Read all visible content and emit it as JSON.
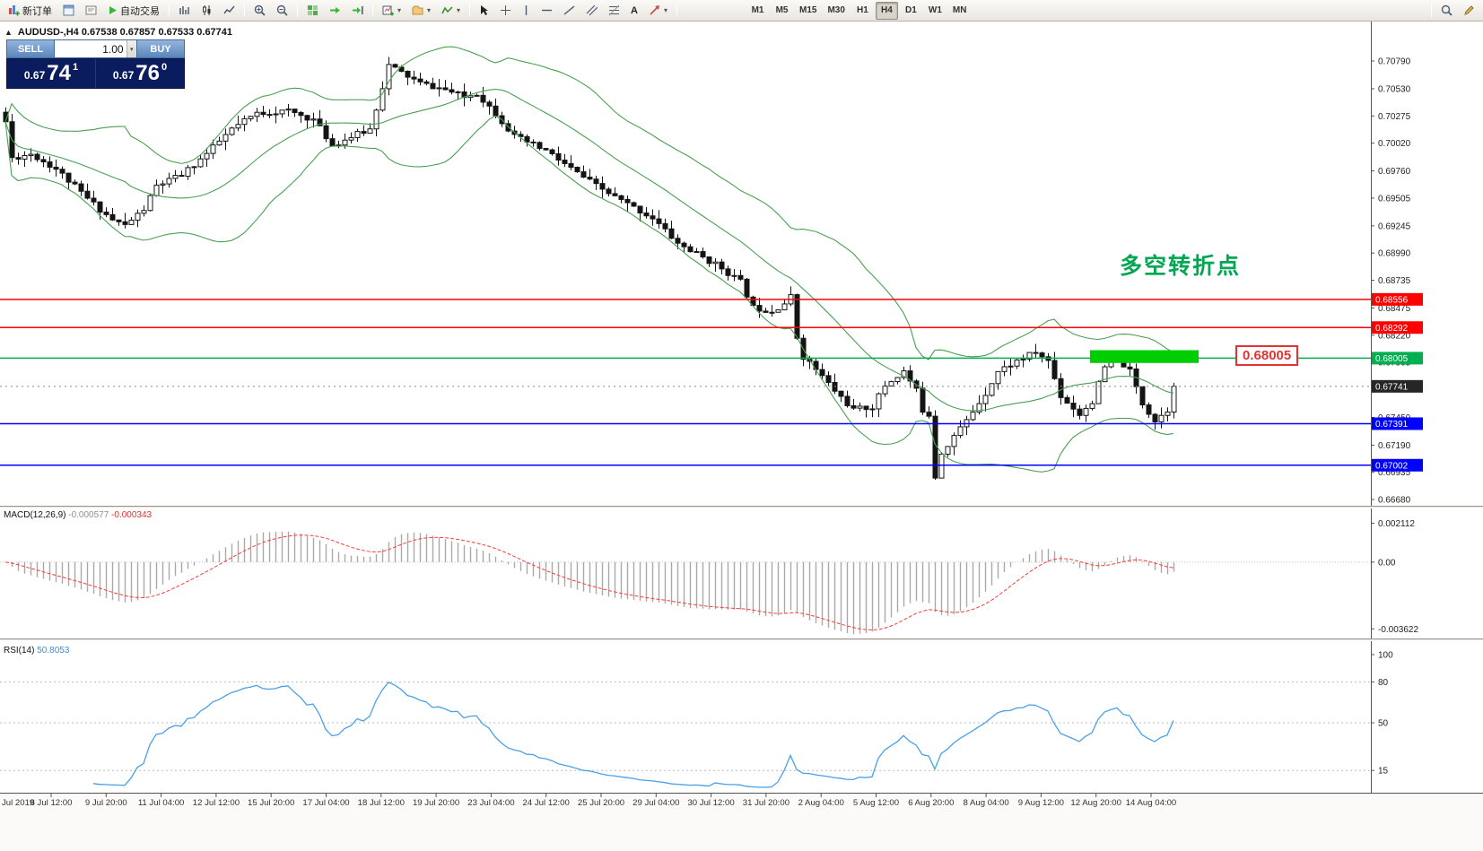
{
  "toolbar": {
    "new_order": "新订单",
    "auto_trading": "自动交易",
    "timeframes": [
      "M1",
      "M5",
      "M15",
      "M30",
      "H1",
      "H4",
      "D1",
      "W1",
      "MN"
    ],
    "active_timeframe": "H4"
  },
  "symbol_header": {
    "collapse_arrow": "▲",
    "text": "AUDUSD-,H4 0.67538 0.67857 0.67533 0.67741"
  },
  "trade_panel": {
    "sell_label": "SELL",
    "buy_label": "BUY",
    "volume": "1.00",
    "spinner_arrow": "▾",
    "sell_price_small": "0.67",
    "sell_price_big": "74",
    "sell_price_sup": "1",
    "buy_price_small": "0.67",
    "buy_price_big": "76",
    "buy_price_sup": "0"
  },
  "annotations": {
    "turning_point_text": "多空转折点",
    "turning_point_color": "#00a651",
    "price_label": "0.68005",
    "price_label_color": "#e23333"
  },
  "chart_data": [
    {
      "type": "candlestick",
      "title": "AUDUSD-,H4",
      "ohlc_current_bar": {
        "open": "0.67538",
        "high": "0.67857",
        "low": "0.67533",
        "close": "0.67741"
      },
      "ylim": [
        0.7116,
        0.6656
      ],
      "y_ticks": [
        0.7079,
        0.7053,
        0.70275,
        0.7002,
        0.6976,
        0.69505,
        0.69245,
        0.6899,
        0.68735,
        0.68475,
        0.6822,
        0.67965,
        0.6745,
        0.6719,
        0.66935,
        0.6668
      ],
      "hlines": [
        {
          "price": 0.68556,
          "color": "#ff0000",
          "tag": "0.68556"
        },
        {
          "price": 0.68292,
          "color": "#ff0000",
          "tag": "0.68292"
        },
        {
          "price": 0.68005,
          "color": "#00b050",
          "tag": "0.68005"
        },
        {
          "price": 0.67391,
          "color": "#0000ff",
          "tag": "0.67391"
        },
        {
          "price": 0.67002,
          "color": "#0000ff",
          "tag": "0.67002"
        }
      ],
      "current_price": {
        "price": 0.67741,
        "tag": "0.67741",
        "tag_bg": "#262626"
      },
      "rect": {
        "from_idx": 172.7,
        "to_idx": 190,
        "price_top": 0.6808,
        "price_bottom": 0.6796,
        "color": "#00ce00"
      },
      "bollinger": {
        "period": 20,
        "deviation": 2,
        "color": "#4aa052"
      },
      "candles": {
        "count": 187,
        "up_color": "#ffffff",
        "down_color": "#141414",
        "outline": "#141414",
        "path": [
          [
            0,
            0.7022
          ],
          [
            1,
            0.6988
          ],
          [
            4,
            0.6992
          ],
          [
            8,
            0.6978
          ],
          [
            13,
            0.695
          ],
          [
            17,
            0.693
          ],
          [
            19,
            0.6925
          ],
          [
            22,
            0.694
          ],
          [
            24,
            0.6962
          ],
          [
            28,
            0.6972
          ],
          [
            32,
            0.6992
          ],
          [
            36,
            0.7015
          ],
          [
            40,
            0.703
          ],
          [
            45,
            0.7032
          ],
          [
            49,
            0.7024
          ],
          [
            52,
            0.7
          ],
          [
            55,
            0.7008
          ],
          [
            58,
            0.7015
          ],
          [
            60,
            0.7055
          ],
          [
            61,
            0.7075
          ],
          [
            63,
            0.7068
          ],
          [
            66,
            0.7058
          ],
          [
            70,
            0.7052
          ],
          [
            73,
            0.7045
          ],
          [
            75,
            0.7049
          ],
          [
            78,
            0.703
          ],
          [
            81,
            0.7008
          ],
          [
            86,
            0.6995
          ],
          [
            90,
            0.6978
          ],
          [
            94,
            0.6962
          ],
          [
            98,
            0.6948
          ],
          [
            103,
            0.6932
          ],
          [
            107,
            0.6908
          ],
          [
            111,
            0.6895
          ],
          [
            114,
            0.6885
          ],
          [
            117,
            0.6872
          ],
          [
            119,
            0.6848
          ],
          [
            122,
            0.6845
          ],
          [
            124,
            0.6852
          ],
          [
            125,
            0.6858
          ],
          [
            126,
            0.682
          ],
          [
            127,
            0.6802
          ],
          [
            129,
            0.679
          ],
          [
            132,
            0.677
          ],
          [
            135,
            0.6752
          ],
          [
            138,
            0.6755
          ],
          [
            140,
            0.6775
          ],
          [
            143,
            0.6788
          ],
          [
            145,
            0.677
          ],
          [
            146,
            0.6752
          ],
          [
            147,
            0.6748
          ],
          [
            148,
            0.669
          ],
          [
            149,
            0.6712
          ],
          [
            151,
            0.6728
          ],
          [
            153,
            0.6742
          ],
          [
            156,
            0.6768
          ],
          [
            158,
            0.6788
          ],
          [
            161,
            0.6798
          ],
          [
            164,
            0.6806
          ],
          [
            166,
            0.6798
          ],
          [
            168,
            0.6765
          ],
          [
            171,
            0.6748
          ],
          [
            173,
            0.676
          ],
          [
            175,
            0.6792
          ],
          [
            177,
            0.68
          ],
          [
            179,
            0.6788
          ],
          [
            181,
            0.6758
          ],
          [
            183,
            0.6742
          ],
          [
            185,
            0.6752
          ],
          [
            186,
            0.67741
          ]
        ]
      },
      "x_axis": {
        "labels": [
          "Jul 2019",
          "8 Jul 12:00",
          "9 Jul 20:00",
          "11 Jul 04:00",
          "12 Jul 12:00",
          "15 Jul 20:00",
          "17 Jul 04:00",
          "18 Jul 12:00",
          "19 Jul 20:00",
          "23 Jul 04:00",
          "24 Jul 12:00",
          "25 Jul 20:00",
          "29 Jul 04:00",
          "30 Jul 12:00",
          "31 Jul 20:00",
          "2 Aug 04:00",
          "5 Aug 12:00",
          "6 Aug 20:00",
          "8 Aug 04:00",
          "9 Aug 12:00",
          "12 Aug 20:00",
          "14 Aug 04:00"
        ]
      }
    },
    {
      "type": "macd",
      "label": "MACD(12,26,9)",
      "values": [
        "-0.000577",
        "-0.000343"
      ],
      "params": {
        "fast": 12,
        "slow": 26,
        "signal": 9
      },
      "y_ticks": [
        "0.002112",
        "0.00",
        "-0.003622"
      ],
      "ylim": [
        0.00228,
        -0.00395
      ],
      "histogram_color": "#a9a9a9",
      "signal_color": "#ff3b3b"
    },
    {
      "type": "rsi",
      "label": "RSI(14)",
      "value": "50.8053",
      "period": 14,
      "y_ticks": [
        100,
        80,
        50,
        15
      ],
      "levels": [
        80,
        50,
        15
      ],
      "ylim": [
        100,
        0
      ],
      "line_color": "#4aa0e8"
    }
  ]
}
